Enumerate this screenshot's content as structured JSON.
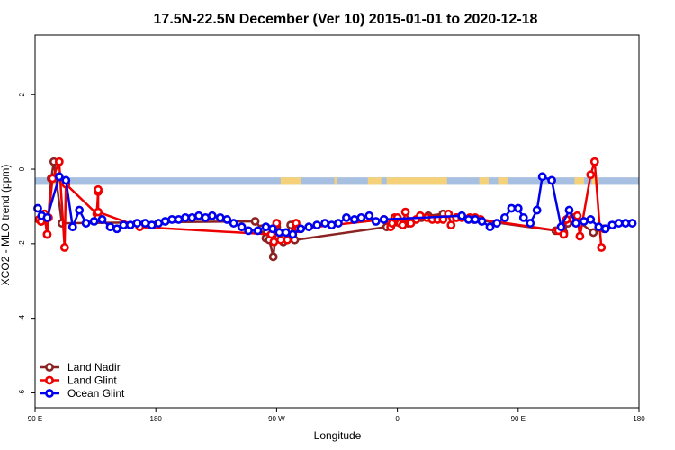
{
  "chart_data": {
    "type": "line",
    "title": "17.5N-22.5N December (Ver 10)   2015-01-01 to 2020-12-18",
    "xlabel": "Longitude",
    "ylabel": "XCO2 - MLO trend (ppm)",
    "xlim": [
      90,
      540
    ],
    "ylim": [
      -6.4,
      3.6
    ],
    "x_ticks": [
      {
        "value": 90,
        "label": "90 E"
      },
      {
        "value": 180,
        "label": "180"
      },
      {
        "value": 270,
        "label": "90 W"
      },
      {
        "value": 360,
        "label": "0"
      },
      {
        "value": 450,
        "label": "90 E"
      },
      {
        "value": 540,
        "label": "180"
      }
    ],
    "y_ticks": [
      {
        "value": 2,
        "label": "2"
      },
      {
        "value": 0,
        "label": "0"
      },
      {
        "value": -2,
        "label": "-2"
      },
      {
        "value": -4,
        "label": "-4"
      },
      {
        "value": -6,
        "label": "-6"
      }
    ],
    "legend_position": "bottom-left",
    "land_ocean_band": {
      "y_range": [
        -0.42,
        -0.22
      ],
      "ocean_color": "#a7bfe0",
      "land_color": "#f5d27a",
      "land_segments": [
        [
          102,
          112
        ],
        [
          273,
          288
        ],
        [
          313,
          315
        ],
        [
          338,
          348
        ],
        [
          352,
          397
        ],
        [
          421,
          428
        ],
        [
          435,
          442
        ],
        [
          472,
          478
        ],
        [
          492,
          499
        ],
        [
          505,
          510
        ]
      ]
    },
    "series": [
      {
        "name": "Land Nadir",
        "color": "#8b2323",
        "x": [
          93,
          94.5,
          97,
          99,
          102,
          104,
          110,
          254,
          259,
          262,
          264.5,
          267.5,
          270,
          275,
          276,
          280.5,
          283.5,
          352,
          368,
          378,
          383,
          394,
          404,
          417,
          478,
          484,
          487,
          491,
          506,
          514
        ],
        "y": [
          -1.35,
          -1.4,
          -1.2,
          -1.75,
          -0.25,
          0.2,
          -1.45,
          -1.4,
          -1.6,
          -1.85,
          -1.9,
          -2.35,
          -1.55,
          -1.95,
          -1.85,
          -1.5,
          -1.9,
          -1.55,
          -1.45,
          -1.3,
          -1.25,
          -1.2,
          -1.3,
          -1.35,
          -1.65,
          -1.7,
          -1.45,
          -1.3,
          -1.7,
          -1.6
        ]
      },
      {
        "name": "Land Glint",
        "color": "#ee0000",
        "x": [
          93,
          94.5,
          97,
          99,
          100,
          103,
          108,
          112,
          113,
          136,
          137,
          137,
          137,
          137,
          168,
          268,
          270,
          266,
          273,
          278,
          284.5,
          286,
          350,
          355,
          356,
          358,
          360,
          362,
          364,
          366,
          369,
          370,
          374,
          377,
          382,
          386,
          390,
          394,
          398,
          400,
          404,
          408,
          414,
          418,
          422,
          480,
          484,
          486,
          491,
          494,
          496,
          504,
          507,
          512
        ],
        "y": [
          -1.35,
          -1.4,
          -1.2,
          -1.75,
          -1.3,
          -0.25,
          0.2,
          -2.1,
          -0.4,
          -1.2,
          -0.6,
          -1.3,
          -0.55,
          -1.15,
          -1.55,
          -1.95,
          -1.45,
          -1.75,
          -1.9,
          -1.9,
          -1.45,
          -1.6,
          -1.35,
          -1.55,
          -1.45,
          -1.3,
          -1.3,
          -1.45,
          -1.5,
          -1.15,
          -1.4,
          -1.45,
          -1.35,
          -1.25,
          -1.3,
          -1.35,
          -1.35,
          -1.35,
          -1.2,
          -1.5,
          -1.3,
          -1.3,
          -1.3,
          -1.3,
          -1.35,
          -1.65,
          -1.75,
          -1.35,
          -1.35,
          -1.25,
          -1.8,
          -0.15,
          0.2,
          -2.1
        ],
        "_note": "points read approximately from markers"
      },
      {
        "name": "Ocean Glint",
        "color": "#0000ee",
        "x": [
          92,
          95,
          99,
          108,
          113,
          118,
          123,
          128,
          134,
          140,
          146,
          151,
          156,
          161,
          166,
          172,
          177,
          182,
          187,
          192,
          197,
          202,
          207,
          212,
          217,
          222,
          228,
          233,
          238,
          244,
          249,
          256,
          262,
          267,
          272,
          277,
          282,
          288,
          294,
          300,
          306,
          311,
          316,
          322,
          328,
          333,
          339,
          344,
          350,
          408,
          413,
          418,
          423,
          429,
          434,
          440,
          445,
          450,
          454,
          459,
          464,
          468,
          475,
          482,
          488,
          493,
          499,
          504,
          510,
          515,
          520,
          525,
          530,
          535
        ],
        "y": [
          -1.05,
          -1.25,
          -1.3,
          -0.2,
          -0.3,
          -1.55,
          -1.1,
          -1.45,
          -1.4,
          -1.35,
          -1.55,
          -1.6,
          -1.5,
          -1.5,
          -1.45,
          -1.45,
          -1.5,
          -1.45,
          -1.4,
          -1.35,
          -1.35,
          -1.3,
          -1.3,
          -1.25,
          -1.3,
          -1.25,
          -1.3,
          -1.35,
          -1.45,
          -1.55,
          -1.65,
          -1.65,
          -1.55,
          -1.6,
          -1.7,
          -1.7,
          -1.75,
          -1.6,
          -1.55,
          -1.5,
          -1.45,
          -1.5,
          -1.45,
          -1.3,
          -1.35,
          -1.3,
          -1.25,
          -1.4,
          -1.35,
          -1.25,
          -1.35,
          -1.35,
          -1.4,
          -1.55,
          -1.45,
          -1.3,
          -1.05,
          -1.05,
          -1.3,
          -1.45,
          -1.1,
          -0.2,
          -0.3,
          -1.55,
          -1.1,
          -1.45,
          -1.4,
          -1.35,
          -1.55,
          -1.6,
          -1.5,
          -1.45,
          -1.45,
          -1.45
        ]
      }
    ]
  }
}
